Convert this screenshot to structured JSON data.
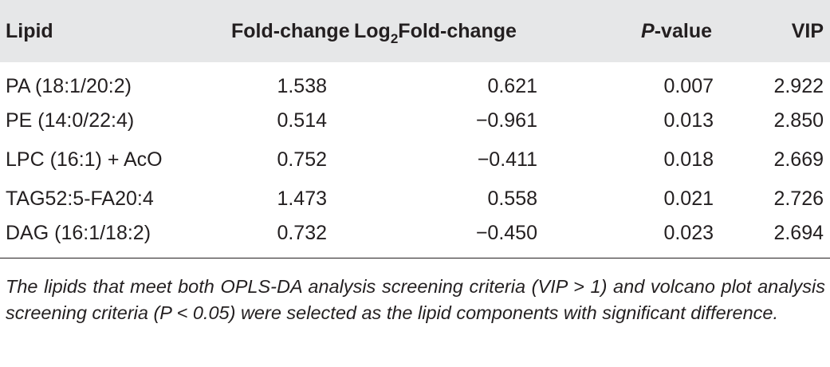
{
  "table": {
    "headers": {
      "lipid": "Lipid",
      "fold_change": "Fold-change",
      "log_prefix": "Log",
      "log_sub": "2",
      "log_suffix": "Fold-change",
      "p_italic": "P",
      "p_suffix": "-value",
      "vip": "VIP"
    },
    "rows": [
      {
        "lipid": "PA (18:1/20:2)",
        "fold_change": "1.538",
        "log2_fold_change": "0.621",
        "p_value": "0.007",
        "vip": "2.922"
      },
      {
        "lipid": "PE (14:0/22:4)",
        "fold_change": "0.514",
        "log2_fold_change": "−0.961",
        "p_value": "0.013",
        "vip": "2.850"
      },
      {
        "lipid": "LPC (16:1) + AcO",
        "fold_change": "0.752",
        "log2_fold_change": "−0.411",
        "p_value": "0.018",
        "vip": "2.669"
      },
      {
        "lipid": "TAG52:5-FA20:4",
        "fold_change": "1.473",
        "log2_fold_change": "0.558",
        "p_value": "0.021",
        "vip": "2.726"
      },
      {
        "lipid": "DAG (16:1/18:2)",
        "fold_change": "0.732",
        "log2_fold_change": "−0.450",
        "p_value": "0.023",
        "vip": "2.694"
      }
    ]
  },
  "footnote": "The lipids that meet both OPLS-DA analysis screening criteria (VIP > 1) and volcano plot analysis screening criteria (P < 0.05) were selected as the lipid components with significant difference.",
  "colors": {
    "header_bg": "#e6e7e8",
    "text": "#231f20"
  }
}
